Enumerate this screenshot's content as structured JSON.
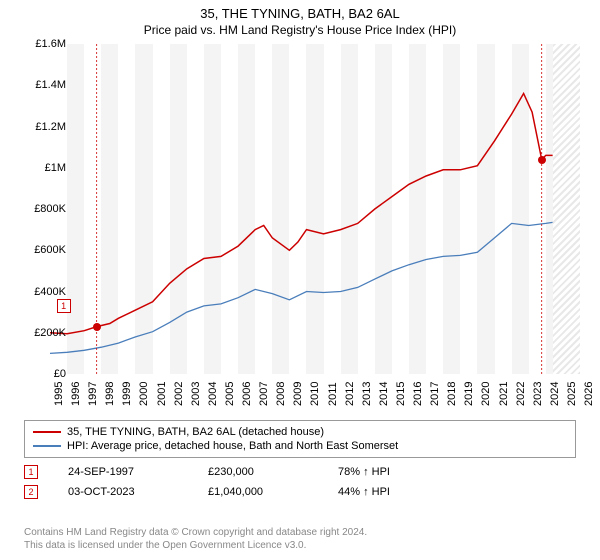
{
  "title": "35, THE TYNING, BATH, BA2 6AL",
  "subtitle": "Price paid vs. HM Land Registry's House Price Index (HPI)",
  "chart": {
    "type": "line",
    "background_color": "#ffffff",
    "grid_odd_color": "#f4f4f4",
    "grid_even_color": "#ffffff",
    "hatch_color": "#e8e8e8",
    "text_color": "#000000",
    "ylim": [
      0,
      1600000
    ],
    "ytick_step": 200000,
    "yticks": [
      "£0",
      "£200K",
      "£400K",
      "£600K",
      "£800K",
      "£1M",
      "£1.2M",
      "£1.4M",
      "£1.6M"
    ],
    "xlim": [
      1995,
      2026
    ],
    "xticks": [
      1995,
      1996,
      1997,
      1998,
      1999,
      2000,
      2001,
      2002,
      2003,
      2004,
      2005,
      2006,
      2007,
      2008,
      2009,
      2010,
      2011,
      2012,
      2013,
      2014,
      2015,
      2016,
      2017,
      2018,
      2019,
      2020,
      2021,
      2022,
      2023,
      2024,
      2025,
      2026
    ],
    "hatch_from_year": 2024.4,
    "series": [
      {
        "name": "price_paid",
        "label": "35, THE TYNING, BATH, BA2 6AL (detached house)",
        "color": "#cc0000",
        "line_width": 1.5,
        "points": [
          [
            1995,
            200000
          ],
          [
            1996,
            195000
          ],
          [
            1997,
            210000
          ],
          [
            1997.73,
            230000
          ],
          [
            1998.5,
            245000
          ],
          [
            1999,
            270000
          ],
          [
            2000,
            310000
          ],
          [
            2001,
            350000
          ],
          [
            2002,
            440000
          ],
          [
            2003,
            510000
          ],
          [
            2004,
            560000
          ],
          [
            2005,
            570000
          ],
          [
            2006,
            620000
          ],
          [
            2007,
            700000
          ],
          [
            2007.5,
            720000
          ],
          [
            2008,
            660000
          ],
          [
            2009,
            600000
          ],
          [
            2009.5,
            640000
          ],
          [
            2010,
            700000
          ],
          [
            2011,
            680000
          ],
          [
            2012,
            700000
          ],
          [
            2013,
            730000
          ],
          [
            2014,
            800000
          ],
          [
            2015,
            860000
          ],
          [
            2016,
            920000
          ],
          [
            2017,
            960000
          ],
          [
            2018,
            990000
          ],
          [
            2019,
            990000
          ],
          [
            2020,
            1010000
          ],
          [
            2021,
            1130000
          ],
          [
            2022,
            1260000
          ],
          [
            2022.7,
            1360000
          ],
          [
            2023.2,
            1270000
          ],
          [
            2023.76,
            1040000
          ],
          [
            2024,
            1060000
          ],
          [
            2024.4,
            1060000
          ]
        ]
      },
      {
        "name": "hpi",
        "label": "HPI: Average price, detached house, Bath and North East Somerset",
        "color": "#4a7ebb",
        "line_width": 1.3,
        "points": [
          [
            1995,
            100000
          ],
          [
            1996,
            105000
          ],
          [
            1997,
            115000
          ],
          [
            1998,
            130000
          ],
          [
            1999,
            150000
          ],
          [
            2000,
            180000
          ],
          [
            2001,
            205000
          ],
          [
            2002,
            250000
          ],
          [
            2003,
            300000
          ],
          [
            2004,
            330000
          ],
          [
            2005,
            340000
          ],
          [
            2006,
            370000
          ],
          [
            2007,
            410000
          ],
          [
            2008,
            390000
          ],
          [
            2009,
            360000
          ],
          [
            2010,
            400000
          ],
          [
            2011,
            395000
          ],
          [
            2012,
            400000
          ],
          [
            2013,
            420000
          ],
          [
            2014,
            460000
          ],
          [
            2015,
            500000
          ],
          [
            2016,
            530000
          ],
          [
            2017,
            555000
          ],
          [
            2018,
            570000
          ],
          [
            2019,
            575000
          ],
          [
            2020,
            590000
          ],
          [
            2021,
            660000
          ],
          [
            2022,
            730000
          ],
          [
            2023,
            720000
          ],
          [
            2024,
            730000
          ],
          [
            2024.4,
            735000
          ]
        ]
      }
    ],
    "markers": [
      {
        "idx": "1",
        "year": 1997.73,
        "value": 230000,
        "box_offset_x": -40,
        "box_offset_y": -28
      },
      {
        "idx": "2",
        "year": 2023.76,
        "value": 1040000,
        "box_offset_x": 14,
        "box_offset_y": -195
      }
    ],
    "marker_dashed_color": "#cc0000"
  },
  "legend": {
    "items": [
      {
        "color": "#cc0000",
        "label": "35, THE TYNING, BATH, BA2 6AL (detached house)"
      },
      {
        "color": "#4a7ebb",
        "label": "HPI: Average price, detached house, Bath and North East Somerset"
      }
    ]
  },
  "sales": [
    {
      "idx": "1",
      "date": "24-SEP-1997",
      "price": "£230,000",
      "hpi": "78% ↑ HPI"
    },
    {
      "idx": "2",
      "date": "03-OCT-2023",
      "price": "£1,040,000",
      "hpi": "44% ↑ HPI"
    }
  ],
  "footer": {
    "line1": "Contains HM Land Registry data © Crown copyright and database right 2024.",
    "line2": "This data is licensed under the Open Government Licence v3.0."
  }
}
